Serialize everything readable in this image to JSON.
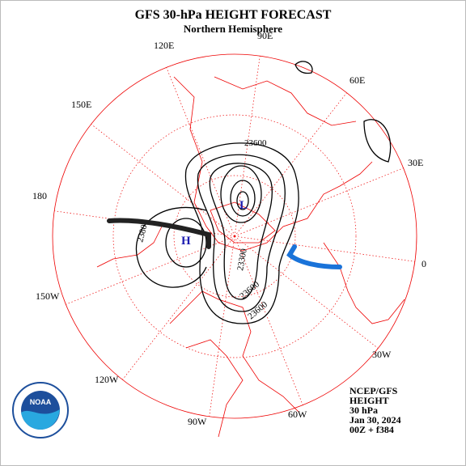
{
  "header": {
    "title": "GFS 30-hPa HEIGHT FORECAST",
    "subtitle": "Northern Hemisphere"
  },
  "longitude_labels": [
    "90E",
    "60E",
    "30E",
    "0",
    "30W",
    "60W",
    "90W",
    "120W",
    "150W",
    "180",
    "150E",
    "120E"
  ],
  "contour_labels": [
    "23600",
    "2380",
    "23300",
    "23600",
    "23600"
  ],
  "centers": {
    "high": "H",
    "low": "L"
  },
  "info": [
    "NCEP/GFS",
    "HEIGHT",
    "30 hPa",
    "Jan 30, 2024",
    "00Z + f384"
  ],
  "logo": "NOAA"
}
